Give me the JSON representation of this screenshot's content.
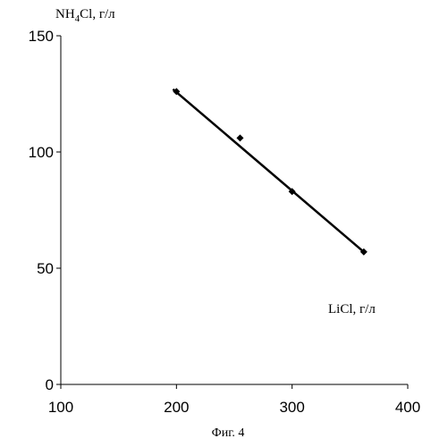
{
  "chart_data": {
    "type": "scatter",
    "title": "",
    "xlabel": "LiCl, г/л",
    "ylabel": "NH4Cl, г/л",
    "ylabel_parts": {
      "pre": "NH",
      "sub": "4",
      "post": "Cl, г/л"
    },
    "caption": "Фиг. 4",
    "xlim": [
      100,
      400
    ],
    "ylim": [
      0,
      150
    ],
    "x_ticks": [
      100,
      200,
      300,
      400
    ],
    "y_ticks": [
      0,
      50,
      100,
      150
    ],
    "x_tick_labels": [
      "100",
      "200",
      "300",
      "400"
    ],
    "y_tick_labels": [
      "0",
      "50",
      "100",
      "150"
    ],
    "grid": false,
    "legend": "none",
    "series": [
      {
        "points": [
          {
            "x": 200,
            "y": 126
          },
          {
            "x": 255,
            "y": 106
          },
          {
            "x": 300,
            "y": 83
          },
          {
            "x": 362,
            "y": 57
          }
        ],
        "marker": "diamond",
        "color": "#000000"
      }
    ],
    "trendline": {
      "start": {
        "x": 197,
        "y": 127
      },
      "end": {
        "x": 362,
        "y": 57
      },
      "color": "#000000"
    }
  }
}
